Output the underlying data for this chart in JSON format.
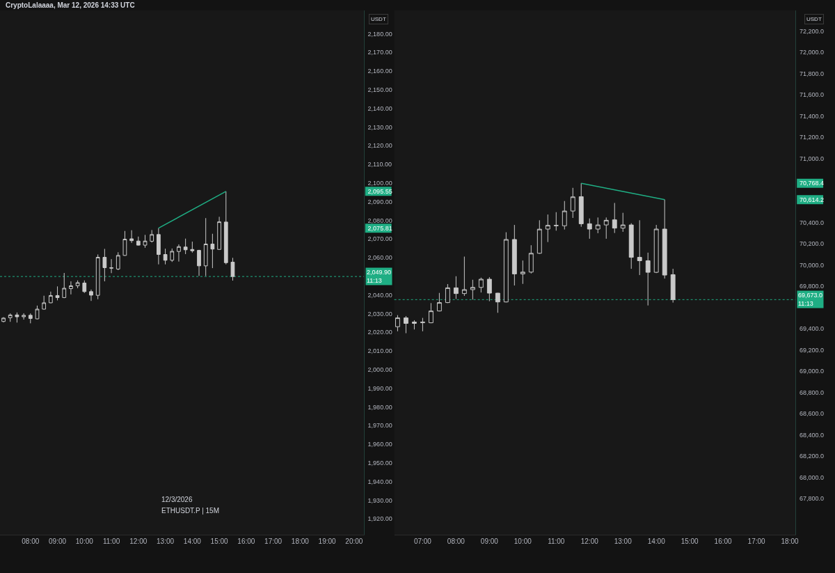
{
  "chart_data": [
    {
      "type": "candlestick",
      "title": "CryptoLalaaaa, Mar 12, 2026 14:33 UTC",
      "ylabel": "USDT",
      "color": "#c9c9c9",
      "x": [
        7.0,
        7.25,
        7.5,
        7.75,
        8.0,
        8.25,
        8.5,
        8.75,
        9.0,
        9.25,
        9.5,
        9.75,
        10.0,
        10.25,
        10.5,
        10.75,
        11.0,
        11.25,
        11.5,
        11.75,
        12.0,
        12.25,
        12.5,
        12.75,
        13.0,
        13.25,
        13.5,
        13.75,
        14.0,
        14.25,
        14.5,
        14.75,
        15.0,
        15.25,
        15.5
      ],
      "ohlc": [
        [
          2025.8,
          2028.1,
          2025.3,
          2027.6
        ],
        [
          2027.8,
          2030.1,
          2025.6,
          2029.3
        ],
        [
          2029.3,
          2030.6,
          2025.2,
          2028.3
        ],
        [
          2028.3,
          2030.2,
          2026.8,
          2029.1
        ],
        [
          2029.1,
          2030.1,
          2024.8,
          2027.4
        ],
        [
          2027.2,
          2034.3,
          2027.0,
          2032.4
        ],
        [
          2032.4,
          2039.6,
          2032.2,
          2035.8
        ],
        [
          2035.8,
          2041.8,
          2035.6,
          2039.7
        ],
        [
          2039.7,
          2044.6,
          2037.1,
          2038.6
        ],
        [
          2038.6,
          2051.8,
          2038.3,
          2043.6
        ],
        [
          2043.4,
          2047.3,
          2040.3,
          2044.9
        ],
        [
          2044.9,
          2047.8,
          2043.6,
          2046.6
        ],
        [
          2046.4,
          2047.8,
          2041.1,
          2041.8
        ],
        [
          2041.8,
          2042.9,
          2036.8,
          2039.9
        ],
        [
          2039.8,
          2061.7,
          2037.7,
          2060.2
        ],
        [
          2060.2,
          2064.7,
          2047.3,
          2054.6
        ],
        [
          2054.3,
          2059.2,
          2051.7,
          2054.6
        ],
        [
          2053.9,
          2062.9,
          2053.3,
          2061.2
        ],
        [
          2061.2,
          2074.3,
          2061.0,
          2069.9
        ],
        [
          2070.1,
          2074.7,
          2067.9,
          2069.1
        ],
        [
          2068.9,
          2071.3,
          2066.5,
          2066.7
        ],
        [
          2066.7,
          2072.2,
          2065.3,
          2068.9
        ],
        [
          2068.8,
          2074.8,
          2068.1,
          2072.4
        ],
        [
          2072.4,
          2075.81,
          2056.4,
          2061.7
        ],
        [
          2061.7,
          2064.8,
          2056.4,
          2058.6
        ],
        [
          2058.6,
          2064.9,
          2057.7,
          2063.4
        ],
        [
          2063.3,
          2067.1,
          2057.9,
          2065.9
        ],
        [
          2065.7,
          2070.2,
          2061.9,
          2064.2
        ],
        [
          2064.4,
          2068.6,
          2062.7,
          2063.7
        ],
        [
          2063.9,
          2064.2,
          2050.2,
          2055.6
        ],
        [
          2055.6,
          2081.2,
          2050.2,
          2067.3
        ],
        [
          2067.3,
          2072.8,
          2054.4,
          2064.6
        ],
        [
          2064.4,
          2081.9,
          2064.2,
          2079.2
        ],
        [
          2079.1,
          2095.55,
          2056.4,
          2057.3
        ],
        [
          2057.6,
          2059.9,
          2047.7,
          2049.9
        ]
      ],
      "series": [
        {
          "type": "line",
          "x": [
            12.75,
            15.25
          ],
          "values": [
            2075.81,
            2095.55
          ],
          "color": "#1fae84"
        }
      ],
      "ref_lines": [
        {
          "axis": "y",
          "value": 2049.9,
          "label": "2,049.90\n11:13",
          "color": "#1fae84",
          "line_style": "dotted"
        }
      ],
      "annotations": [
        "12/3/2026",
        "ETHUSDT.P | 15M"
      ],
      "xlim": [
        6.87,
        20.36
      ],
      "xticks": [
        {
          "value": 8,
          "label": "08:00"
        },
        {
          "value": 9,
          "label": "09:00"
        },
        {
          "value": 10,
          "label": "10:00"
        },
        {
          "value": 11,
          "label": "11:00"
        },
        {
          "value": 12,
          "label": "12:00"
        },
        {
          "value": 13,
          "label": "13:00"
        },
        {
          "value": 14,
          "label": "14:00"
        },
        {
          "value": 15,
          "label": "15:00"
        },
        {
          "value": 16,
          "label": "16:00"
        },
        {
          "value": 17,
          "label": "17:00"
        },
        {
          "value": 18,
          "label": "18:00"
        },
        {
          "value": 19,
          "label": "19:00"
        },
        {
          "value": 20,
          "label": "20:00"
        }
      ],
      "ylim": [
        1911.5,
        2192.5
      ],
      "yticks": [
        {
          "value": 1920,
          "label": "1,920.00"
        },
        {
          "value": 1930,
          "label": "1,930.00"
        },
        {
          "value": 1940,
          "label": "1,940.00"
        },
        {
          "value": 1950,
          "label": "1,950.00"
        },
        {
          "value": 1960,
          "label": "1,960.00"
        },
        {
          "value": 1970,
          "label": "1,970.00"
        },
        {
          "value": 1980,
          "label": "1,980.00"
        },
        {
          "value": 1990,
          "label": "1,990.00"
        },
        {
          "value": 2000,
          "label": "2,000.00"
        },
        {
          "value": 2010,
          "label": "2,010.00"
        },
        {
          "value": 2020,
          "label": "2,020.00"
        },
        {
          "value": 2030,
          "label": "2,030.00"
        },
        {
          "value": 2040,
          "label": "2,040.00"
        },
        {
          "value": 2060,
          "label": "2,060.00"
        },
        {
          "value": 2070,
          "label": "2,070.00"
        },
        {
          "value": 2075.81,
          "label": "2,075.81"
        },
        {
          "value": 2080,
          "label": "2,080.00"
        },
        {
          "value": 2090,
          "label": "2,090.00"
        },
        {
          "value": 2095.55,
          "label": "2,095.55"
        },
        {
          "value": 2100,
          "label": "2,100.00"
        },
        {
          "value": 2110,
          "label": "2,110.00"
        },
        {
          "value": 2120,
          "label": "2,120.00"
        },
        {
          "value": 2130,
          "label": "2,130.00"
        },
        {
          "value": 2140,
          "label": "2,140.00"
        },
        {
          "value": 2150,
          "label": "2,150.00"
        },
        {
          "value": 2160,
          "label": "2,160.00"
        },
        {
          "value": 2170,
          "label": "2,170.00"
        },
        {
          "value": 2180,
          "label": "2,180.00"
        }
      ]
    },
    {
      "type": "candlestick",
      "ylabel": "USDT",
      "color": "#c9c9c9",
      "x": [
        6.25,
        6.5,
        6.75,
        7.0,
        7.25,
        7.5,
        7.75,
        8.0,
        8.25,
        8.5,
        8.75,
        9.0,
        9.25,
        9.5,
        9.75,
        10.0,
        10.25,
        10.5,
        10.75,
        11.0,
        11.25,
        11.5,
        11.75,
        12.0,
        12.25,
        12.5,
        12.75,
        13.0,
        13.25,
        13.5,
        13.75,
        14.0,
        14.25,
        14.5
      ],
      "ohlc": [
        [
          69418,
          69527,
          69375,
          69501
        ],
        [
          69501,
          69518,
          69357,
          69449
        ],
        [
          69449,
          69479,
          69392,
          69462
        ],
        [
          69455,
          69501,
          69375,
          69462
        ],
        [
          69455,
          69640,
          69451,
          69566
        ],
        [
          69566,
          69736,
          69562,
          69645
        ],
        [
          69645,
          69819,
          69640,
          69784
        ],
        [
          69784,
          69893,
          69679,
          69730
        ],
        [
          69730,
          70078,
          69708,
          69767
        ],
        [
          69767,
          69860,
          69673,
          69788
        ],
        [
          69788,
          69880,
          69740,
          69865
        ],
        [
          69865,
          69884,
          69658,
          69734
        ],
        [
          69734,
          69736,
          69549,
          69651
        ],
        [
          69651,
          70307,
          69647,
          70239
        ],
        [
          70239,
          70376,
          69806,
          69915
        ],
        [
          69915,
          70041,
          69821,
          69932
        ],
        [
          69932,
          70185,
          69919,
          70109
        ],
        [
          70109,
          70420,
          70104,
          70336
        ],
        [
          70337,
          70474,
          70215,
          70372
        ],
        [
          70368,
          70496,
          70322,
          70372
        ],
        [
          70368,
          70601,
          70333,
          70507
        ],
        [
          70507,
          70725,
          70442,
          70640
        ],
        [
          70642,
          70768.4,
          70359,
          70387
        ],
        [
          70387,
          70437,
          70246,
          70337
        ],
        [
          70337,
          70446,
          70298,
          70376
        ],
        [
          70376,
          70446,
          70246,
          70420
        ],
        [
          70424,
          70583,
          70300,
          70346
        ],
        [
          70346,
          70490,
          70311,
          70376
        ],
        [
          70376,
          70392,
          69963,
          70071
        ],
        [
          70071,
          70420,
          69904,
          70039
        ],
        [
          70039,
          70115,
          69618,
          69930
        ],
        [
          69930,
          70376,
          69923,
          70337
        ],
        [
          70337,
          70614.2,
          69871,
          69904
        ],
        [
          69908,
          69963,
          69645,
          69673.0
        ]
      ],
      "series": [
        {
          "type": "line",
          "x": [
            11.75,
            14.25
          ],
          "values": [
            70768.4,
            70614.2
          ],
          "color": "#1fae84"
        }
      ],
      "ref_lines": [
        {
          "axis": "y",
          "value": 69673.0,
          "label": "69,673.0\n11:13",
          "color": "#1fae84",
          "line_style": "dotted"
        }
      ],
      "xlim": [
        6.15,
        18.17
      ],
      "xticks": [
        {
          "value": 7,
          "label": "07:00"
        },
        {
          "value": 8,
          "label": "08:00"
        },
        {
          "value": 9,
          "label": "09:00"
        },
        {
          "value": 10,
          "label": "10:00"
        },
        {
          "value": 11,
          "label": "11:00"
        },
        {
          "value": 12,
          "label": "12:00"
        },
        {
          "value": 13,
          "label": "13:00"
        },
        {
          "value": 14,
          "label": "14:00"
        },
        {
          "value": 15,
          "label": "15:00"
        },
        {
          "value": 16,
          "label": "16:00"
        },
        {
          "value": 17,
          "label": "17:00"
        },
        {
          "value": 18,
          "label": "18:00"
        }
      ],
      "ylim": [
        67460,
        72395
      ],
      "yticks": [
        {
          "value": 67800,
          "label": "67,800.0"
        },
        {
          "value": 68000,
          "label": "68,000.0"
        },
        {
          "value": 68200,
          "label": "68,200.0"
        },
        {
          "value": 68400,
          "label": "68,400.0"
        },
        {
          "value": 68600,
          "label": "68,600.0"
        },
        {
          "value": 68800,
          "label": "68,800.0"
        },
        {
          "value": 69000,
          "label": "69,000.0"
        },
        {
          "value": 69200,
          "label": "69,200.0"
        },
        {
          "value": 69400,
          "label": "69,400.0"
        },
        {
          "value": 69800,
          "label": "69,800.0"
        },
        {
          "value": 70000,
          "label": "70,000.0"
        },
        {
          "value": 70200,
          "label": "70,200.0"
        },
        {
          "value": 70400,
          "label": "70,400.0"
        },
        {
          "value": 70614.2,
          "label": "70,614.2"
        },
        {
          "value": 70768.4,
          "label": "70,768.4"
        },
        {
          "value": 71000,
          "label": "71,000.0"
        },
        {
          "value": 71200,
          "label": "71,200.0"
        },
        {
          "value": 71400,
          "label": "71,400.0"
        },
        {
          "value": 71600,
          "label": "71,600.0"
        },
        {
          "value": 71800,
          "label": "71,800.0"
        },
        {
          "value": 72000,
          "label": "72,000.0"
        },
        {
          "value": 72200,
          "label": "72,200.0"
        }
      ]
    }
  ]
}
